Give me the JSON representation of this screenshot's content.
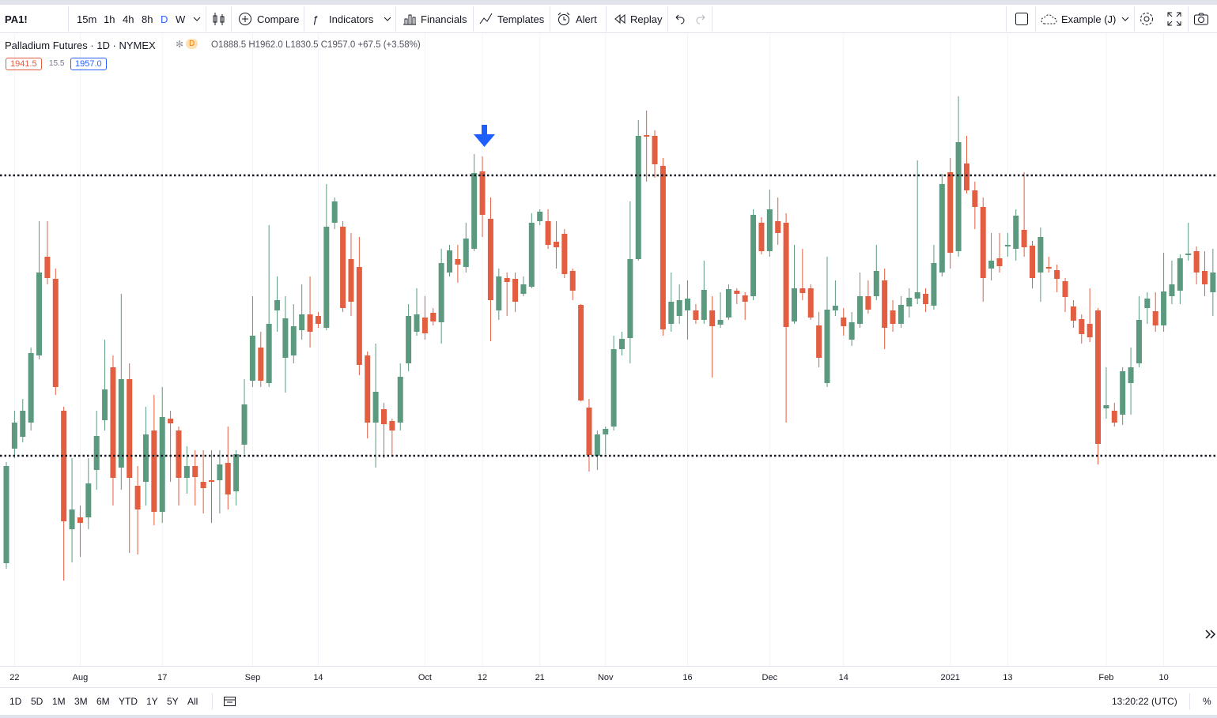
{
  "toolbar": {
    "symbol": "PA1!",
    "intervals": [
      "15m",
      "1h",
      "4h",
      "8h",
      "D",
      "W"
    ],
    "compare": "Compare",
    "indicators": "Indicators",
    "financials": "Financials",
    "templates": "Templates",
    "alert": "Alert",
    "replay": "Replay",
    "layout": "Example (J)"
  },
  "legend": {
    "title": "Palladium Futures · 1D · NYMEX",
    "flag": "D",
    "ohlc": "O1888.5 H1962.0 L1830.5 C1957.0 +67.5 (+3.58%)",
    "bid": "1941.5",
    "spread": "15.5",
    "ask": "1957.0"
  },
  "chart_data": {
    "type": "candlestick",
    "categories": [
      null,
      "22",
      null,
      null,
      null,
      null,
      null,
      null,
      null,
      "Aug",
      null,
      null,
      null,
      null,
      null,
      null,
      null,
      null,
      null,
      "17",
      null,
      null,
      null,
      null,
      null,
      null,
      null,
      null,
      null,
      null,
      "Sep",
      null,
      null,
      null,
      null,
      null,
      null,
      null,
      "14",
      null,
      null,
      null,
      null,
      null,
      null,
      null,
      null,
      null,
      null,
      null,
      null,
      "Oct",
      null,
      null,
      null,
      null,
      null,
      null,
      "12",
      null,
      null,
      null,
      null,
      null,
      null,
      "21",
      null,
      null,
      null,
      null,
      null,
      null,
      null,
      "Nov",
      null,
      null,
      null,
      null,
      null,
      null,
      null,
      null,
      null,
      "16",
      null,
      null,
      null,
      null,
      null,
      null,
      null,
      null,
      null,
      "Dec",
      null,
      null,
      null,
      null,
      null,
      null,
      null,
      null,
      "14",
      null,
      null,
      null,
      null,
      null,
      null,
      null,
      null,
      null,
      null,
      null,
      null,
      "2021",
      null,
      null,
      null,
      null,
      null,
      null,
      "13",
      null,
      null,
      null,
      null,
      null,
      null,
      null,
      null,
      null,
      null,
      null,
      "Feb",
      null,
      null,
      null,
      null,
      null,
      null,
      "10",
      null,
      null,
      null,
      null,
      null,
      null
    ],
    "open": [
      2287,
      2432,
      2447,
      2465,
      2550,
      2675,
      2647,
      2480,
      2330,
      2345,
      2345,
      2405,
      2468,
      2535,
      2408,
      2520,
      2385,
      2390,
      2455,
      2352,
      2470,
      2455,
      2395,
      2410,
      2390,
      2392,
      2392,
      2414,
      2378,
      2437,
      2518,
      2560,
      2515,
      2607,
      2547,
      2550,
      2582,
      2602,
      2600,
      2585,
      2718,
      2713,
      2672,
      2662,
      2550,
      2465,
      2482,
      2467,
      2465,
      2540,
      2580,
      2598,
      2604,
      2592,
      2655,
      2672,
      2662,
      2685,
      2783,
      2723,
      2607,
      2648,
      2647,
      2628,
      2637,
      2720,
      2720,
      2694,
      2704,
      2657,
      2614,
      2484,
      2423,
      2450,
      2460,
      2558,
      2572,
      2672,
      2829,
      2828,
      2790,
      2590,
      2600,
      2607,
      2607,
      2595,
      2607,
      2589,
      2598,
      2632,
      2626,
      2625,
      2718,
      2682,
      2720,
      2718,
      2593,
      2635,
      2635,
      2588,
      2515,
      2607,
      2598,
      2570,
      2590,
      2625,
      2625,
      2645,
      2607,
      2590,
      2612,
      2622,
      2628,
      2613,
      2655,
      2782,
      2682,
      2793,
      2759,
      2738,
      2660,
      2673,
      2688,
      2685,
      2709,
      2689,
      2655,
      2662,
      2658,
      2644,
      2612,
      2596,
      2590,
      2607,
      2483,
      2480,
      2475,
      2515,
      2540,
      2610,
      2606,
      2588,
      2625,
      2632,
      2677,
      2682,
      2657,
      2630
    ],
    "high": [
      2415,
      2480,
      2495,
      2560,
      2720,
      2720,
      2660,
      2485,
      2420,
      2360,
      2420,
      2480,
      2570,
      2550,
      2628,
      2540,
      2410,
      2485,
      2500,
      2510,
      2480,
      2460,
      2435,
      2430,
      2430,
      2430,
      2430,
      2460,
      2430,
      2520,
      2625,
      2580,
      2715,
      2650,
      2625,
      2615,
      2640,
      2650,
      2605,
      2767,
      2750,
      2720,
      2705,
      2700,
      2555,
      2565,
      2490,
      2470,
      2540,
      2615,
      2635,
      2625,
      2610,
      2685,
      2690,
      2690,
      2718,
      2805,
      2802,
      2750,
      2660,
      2655,
      2655,
      2650,
      2730,
      2735,
      2735,
      2720,
      2710,
      2660,
      2615,
      2495,
      2455,
      2460,
      2575,
      2580,
      2745,
      2848,
      2860,
      2835,
      2800,
      2655,
      2640,
      2645,
      2615,
      2670,
      2625,
      2630,
      2640,
      2635,
      2630,
      2735,
      2725,
      2760,
      2750,
      2730,
      2690,
      2685,
      2640,
      2605,
      2675,
      2645,
      2610,
      2605,
      2655,
      2645,
      2690,
      2660,
      2620,
      2625,
      2635,
      2797,
      2635,
      2690,
      2780,
      2800,
      2878,
      2828,
      2770,
      2750,
      2705,
      2705,
      2705,
      2735,
      2782,
      2695,
      2712,
      2675,
      2665,
      2648,
      2620,
      2602,
      2635,
      2610,
      2535,
      2490,
      2535,
      2560,
      2625,
      2630,
      2630,
      2680,
      2670,
      2678,
      2718,
      2688,
      2682,
      2685
    ],
    "low": [
      2280,
      2420,
      2440,
      2455,
      2545,
      2640,
      2500,
      2265,
      2288,
      2295,
      2330,
      2380,
      2455,
      2360,
      2380,
      2300,
      2298,
      2360,
      2335,
      2338,
      2390,
      2360,
      2375,
      2360,
      2350,
      2338,
      2350,
      2355,
      2360,
      2425,
      2510,
      2510,
      2510,
      2580,
      2503,
      2540,
      2570,
      2560,
      2585,
      2582,
      2710,
      2605,
      2600,
      2525,
      2445,
      2408,
      2420,
      2424,
      2455,
      2530,
      2575,
      2570,
      2588,
      2565,
      2650,
      2642,
      2655,
      2682,
      2700,
      2568,
      2595,
      2600,
      2605,
      2625,
      2635,
      2715,
      2685,
      2660,
      2648,
      2620,
      2492,
      2403,
      2405,
      2425,
      2455,
      2550,
      2540,
      2670,
      2770,
      2775,
      2575,
      2580,
      2590,
      2570,
      2590,
      2590,
      2522,
      2585,
      2595,
      2615,
      2595,
      2620,
      2678,
      2675,
      2690,
      2465,
      2590,
      2620,
      2595,
      2535,
      2510,
      2600,
      2575,
      2562,
      2585,
      2603,
      2620,
      2558,
      2580,
      2585,
      2598,
      2615,
      2605,
      2608,
      2650,
      2660,
      2675,
      2755,
      2710,
      2618,
      2645,
      2655,
      2675,
      2670,
      2675,
      2635,
      2618,
      2655,
      2630,
      2605,
      2585,
      2565,
      2567,
      2412,
      2470,
      2460,
      2462,
      2475,
      2535,
      2590,
      2580,
      2580,
      2615,
      2615,
      2670,
      2640,
      2625,
      2600
    ],
    "close": [
      2410,
      2465,
      2480,
      2553,
      2655,
      2648,
      2510,
      2340,
      2355,
      2338,
      2388,
      2448,
      2507,
      2395,
      2520,
      2395,
      2355,
      2450,
      2352,
      2472,
      2464,
      2395,
      2410,
      2396,
      2382,
      2390,
      2412,
      2374,
      2425,
      2488,
      2575,
      2518,
      2590,
      2620,
      2597,
      2587,
      2602,
      2580,
      2590,
      2713,
      2745,
      2610,
      2618,
      2538,
      2465,
      2504,
      2463,
      2455,
      2523,
      2600,
      2602,
      2578,
      2593,
      2667,
      2683,
      2665,
      2698,
      2781,
      2728,
      2620,
      2650,
      2643,
      2618,
      2640,
      2718,
      2732,
      2690,
      2687,
      2653,
      2632,
      2493,
      2424,
      2450,
      2457,
      2558,
      2571,
      2672,
      2828,
      2827,
      2792,
      2583,
      2618,
      2620,
      2622,
      2595,
      2633,
      2587,
      2595,
      2634,
      2628,
      2618,
      2728,
      2682,
      2735,
      2705,
      2586,
      2635,
      2629,
      2598,
      2547,
      2608,
      2613,
      2587,
      2592,
      2625,
      2608,
      2657,
      2585,
      2590,
      2614,
      2623,
      2630,
      2615,
      2667,
      2767,
      2680,
      2820,
      2759,
      2738,
      2648,
      2670,
      2663,
      2690,
      2727,
      2687,
      2648,
      2700,
      2660,
      2647,
      2624,
      2594,
      2577,
      2573,
      2438,
      2487,
      2465,
      2530,
      2535,
      2595,
      2622,
      2588,
      2631,
      2640,
      2673,
      2679,
      2655,
      2640,
      2655
    ],
    "ylim": [
      2157,
      2958
    ],
    "horizontal_lines": [
      2778,
      2423
    ],
    "up_color": "#5b9a7e",
    "down_color": "#e35d40",
    "grid": true
  },
  "bottom": {
    "ranges": [
      "1D",
      "5D",
      "1M",
      "3M",
      "6M",
      "YTD",
      "1Y",
      "5Y",
      "All"
    ],
    "clock": "13:20:22 (UTC)",
    "percent": "%"
  }
}
